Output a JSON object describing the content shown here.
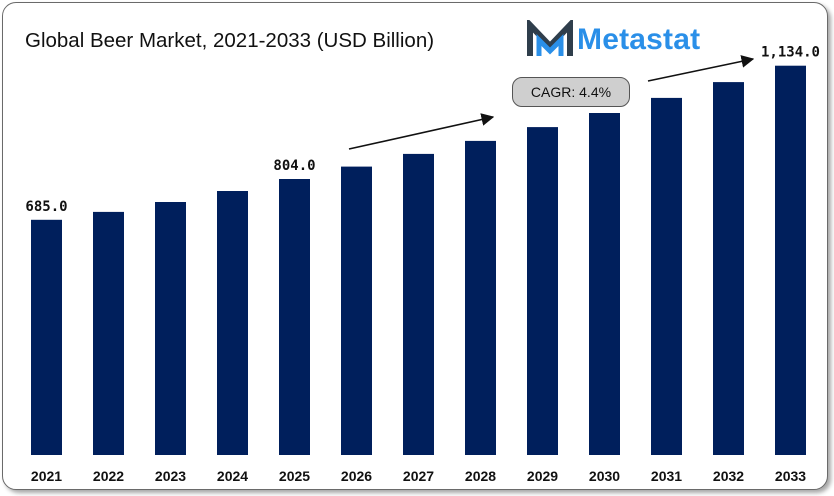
{
  "title": "Global Beer Market, 2021-2033 (USD Billion)",
  "logo": {
    "text": "Metastat",
    "colors": {
      "m_dark": "#2f3e4c",
      "m_blue": "#2a8fe8"
    }
  },
  "cagr_label": "CAGR: 4.4%",
  "colors": {
    "bar": "#001f5c",
    "text": "#111111"
  },
  "chart_data": {
    "type": "bar",
    "title": "Global Beer Market, 2021-2033 (USD Billion)",
    "categories": [
      "2021",
      "2022",
      "2023",
      "2024",
      "2025",
      "2026",
      "2027",
      "2028",
      "2029",
      "2030",
      "2031",
      "2032",
      "2033"
    ],
    "values": [
      685.0,
      708.0,
      737.0,
      769.0,
      804.0,
      840.0,
      877.0,
      915.0,
      955.0,
      996.0,
      1040.0,
      1086.0,
      1134.0
    ],
    "data_labels": [
      {
        "index": 0,
        "text": "685.0"
      },
      {
        "index": 4,
        "text": "804.0"
      },
      {
        "index": 12,
        "text": "1,134.0"
      }
    ],
    "xlabel": "",
    "ylabel": "",
    "ylim": [
      0,
      1200
    ],
    "grid": false,
    "legend": "none"
  }
}
